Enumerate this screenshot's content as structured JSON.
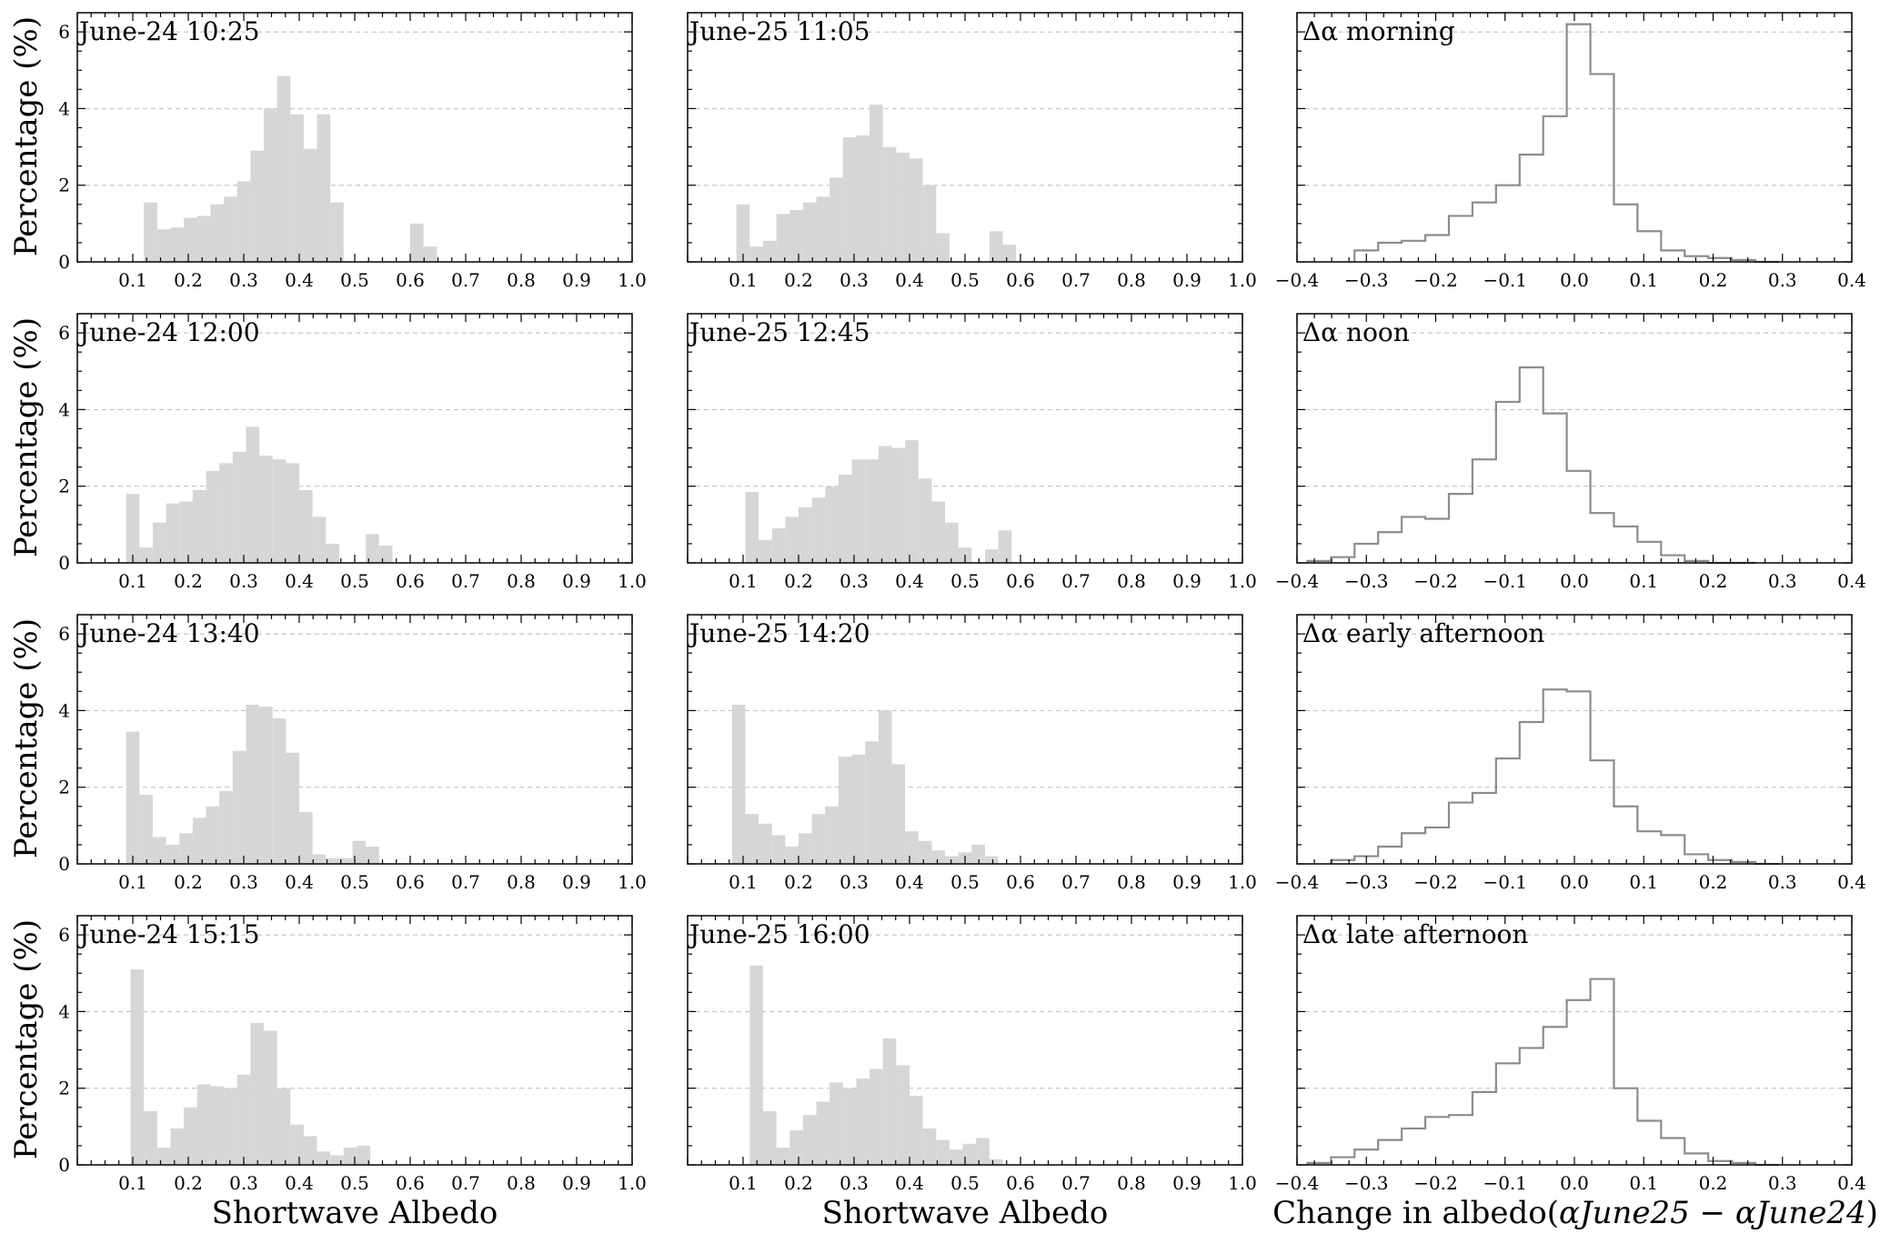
{
  "figure": {
    "ylabel": "Percentage (%)",
    "xlabel_albedo": "Shortwave Albedo",
    "xlabel_change_prefix": "Change in albedo(",
    "xlabel_change_expr": "αJune25 − αJune24",
    "xlabel_change_suffix": ")"
  },
  "chart_data": [
    {
      "type": "bar",
      "label": "June-24 10:25",
      "xlim": [
        0,
        1.0
      ],
      "ylim": [
        0,
        6.5
      ],
      "bin_width": 0.024,
      "x": [
        0.12,
        0.144,
        0.168,
        0.192,
        0.216,
        0.24,
        0.264,
        0.288,
        0.312,
        0.336,
        0.36,
        0.384,
        0.408,
        0.432,
        0.456,
        0.48,
        0.504,
        0.528,
        0.552,
        0.576,
        0.6,
        0.624,
        0.648,
        0.672
      ],
      "values": [
        1.55,
        0.85,
        0.9,
        1.15,
        1.2,
        1.5,
        1.7,
        2.1,
        2.9,
        4.0,
        4.85,
        3.85,
        2.95,
        3.85,
        1.55,
        0,
        0,
        0,
        0,
        0,
        1.0,
        0.4,
        0,
        0
      ]
    },
    {
      "type": "bar",
      "label": "June-25 11:05",
      "xlim": [
        0,
        1.0
      ],
      "ylim": [
        0,
        6.5
      ],
      "bin_width": 0.024,
      "x": [
        0.088,
        0.112,
        0.136,
        0.16,
        0.184,
        0.208,
        0.232,
        0.256,
        0.28,
        0.304,
        0.328,
        0.352,
        0.376,
        0.4,
        0.424,
        0.448,
        0.472,
        0.496,
        0.52,
        0.544,
        0.568,
        0.592,
        0.616,
        0.64,
        0.664
      ],
      "values": [
        1.5,
        0.4,
        0.55,
        1.25,
        1.35,
        1.55,
        1.7,
        2.2,
        3.25,
        3.3,
        4.1,
        3.0,
        2.85,
        2.7,
        2.0,
        0.75,
        0,
        0,
        0,
        0.8,
        0.45,
        0,
        0,
        0,
        0
      ]
    },
    {
      "type": "bar",
      "label": "Δα morning",
      "xlim": [
        -0.4,
        0.4
      ],
      "ylim": [
        0,
        6.5
      ],
      "style": "step",
      "bin_width": 0.034,
      "x": [
        -0.317,
        -0.283,
        -0.249,
        -0.215,
        -0.181,
        -0.147,
        -0.113,
        -0.079,
        -0.045,
        -0.011,
        0.023,
        0.057,
        0.091,
        0.125,
        0.159,
        0.193,
        0.227,
        0.261
      ],
      "values": [
        0.3,
        0.5,
        0.55,
        0.7,
        1.2,
        1.55,
        2.0,
        2.8,
        3.8,
        6.2,
        4.9,
        1.5,
        0.8,
        0.3,
        0.15,
        0.1,
        0.05,
        0.0
      ]
    },
    {
      "type": "bar",
      "label": "June-24 12:00",
      "xlim": [
        0,
        1.0
      ],
      "ylim": [
        0,
        6.5
      ],
      "bin_width": 0.024,
      "x": [
        0.088,
        0.112,
        0.136,
        0.16,
        0.184,
        0.208,
        0.232,
        0.256,
        0.28,
        0.304,
        0.328,
        0.352,
        0.376,
        0.4,
        0.424,
        0.448,
        0.472,
        0.496,
        0.52,
        0.544,
        0.568,
        0.592,
        0.616,
        0.64,
        0.664
      ],
      "values": [
        1.8,
        0.4,
        1.05,
        1.55,
        1.6,
        1.9,
        2.4,
        2.6,
        2.9,
        3.55,
        2.8,
        2.7,
        2.6,
        1.9,
        1.2,
        0.5,
        0,
        0,
        0.75,
        0.45,
        0,
        0,
        0,
        0,
        0
      ]
    },
    {
      "type": "bar",
      "label": "June-25 12:45",
      "xlim": [
        0,
        1.0
      ],
      "ylim": [
        0,
        6.5
      ],
      "bin_width": 0.024,
      "x": [
        0.104,
        0.128,
        0.152,
        0.176,
        0.2,
        0.224,
        0.248,
        0.272,
        0.296,
        0.32,
        0.344,
        0.368,
        0.392,
        0.416,
        0.44,
        0.464,
        0.488,
        0.512,
        0.536,
        0.56,
        0.584,
        0.608,
        0.632,
        0.656,
        0.68
      ],
      "values": [
        1.85,
        0.6,
        0.9,
        1.2,
        1.45,
        1.7,
        2.0,
        2.3,
        2.7,
        2.7,
        3.05,
        3.0,
        3.2,
        2.2,
        1.6,
        1.05,
        0.4,
        0,
        0.35,
        0.85,
        0,
        0,
        0,
        0,
        0
      ]
    },
    {
      "type": "bar",
      "label": "Δα noon",
      "xlim": [
        -0.4,
        0.4
      ],
      "ylim": [
        0,
        6.5
      ],
      "style": "step",
      "bin_width": 0.034,
      "x": [
        -0.385,
        -0.351,
        -0.317,
        -0.283,
        -0.249,
        -0.215,
        -0.181,
        -0.147,
        -0.113,
        -0.079,
        -0.045,
        -0.011,
        0.023,
        0.057,
        0.091,
        0.125,
        0.159,
        0.193,
        0.227
      ],
      "values": [
        0.05,
        0.15,
        0.5,
        0.8,
        1.2,
        1.15,
        1.8,
        2.7,
        4.2,
        5.1,
        3.9,
        2.4,
        1.3,
        0.95,
        0.55,
        0.2,
        0.05,
        0,
        0
      ]
    },
    {
      "type": "bar",
      "label": "June-24 13:40",
      "xlim": [
        0,
        1.0
      ],
      "ylim": [
        0,
        6.5
      ],
      "bin_width": 0.024,
      "x": [
        0.088,
        0.112,
        0.136,
        0.16,
        0.184,
        0.208,
        0.232,
        0.256,
        0.28,
        0.304,
        0.328,
        0.352,
        0.376,
        0.4,
        0.424,
        0.448,
        0.472,
        0.496,
        0.52,
        0.544,
        0.568,
        0.592,
        0.616,
        0.64,
        0.664
      ],
      "values": [
        3.45,
        1.8,
        0.7,
        0.5,
        0.8,
        1.2,
        1.5,
        1.9,
        2.95,
        4.15,
        4.1,
        3.8,
        2.9,
        1.35,
        0.25,
        0.15,
        0.15,
        0.6,
        0.45,
        0,
        0,
        0,
        0,
        0,
        0
      ]
    },
    {
      "type": "bar",
      "label": "June-25 14:20",
      "xlim": [
        0,
        1.0
      ],
      "ylim": [
        0,
        6.5
      ],
      "bin_width": 0.024,
      "x": [
        0.08,
        0.104,
        0.128,
        0.152,
        0.176,
        0.2,
        0.224,
        0.248,
        0.272,
        0.296,
        0.32,
        0.344,
        0.368,
        0.392,
        0.416,
        0.44,
        0.464,
        0.488,
        0.512,
        0.536,
        0.56,
        0.584,
        0.608,
        0.632,
        0.656
      ],
      "values": [
        4.15,
        1.3,
        1.05,
        0.75,
        0.45,
        0.8,
        1.3,
        1.5,
        2.8,
        2.85,
        3.2,
        4.0,
        2.6,
        0.85,
        0.6,
        0.35,
        0.2,
        0.3,
        0.5,
        0.2,
        0,
        0,
        0,
        0,
        0
      ]
    },
    {
      "type": "bar",
      "label": "Δα early afternoon",
      "xlim": [
        -0.4,
        0.4
      ],
      "ylim": [
        0,
        6.5
      ],
      "style": "step",
      "bin_width": 0.034,
      "x": [
        -0.351,
        -0.317,
        -0.283,
        -0.249,
        -0.215,
        -0.181,
        -0.147,
        -0.113,
        -0.079,
        -0.045,
        -0.011,
        0.023,
        0.057,
        0.091,
        0.125,
        0.159,
        0.193,
        0.227,
        0.261
      ],
      "values": [
        0.1,
        0.2,
        0.45,
        0.8,
        0.95,
        1.6,
        1.85,
        2.75,
        3.7,
        4.55,
        4.5,
        2.7,
        1.5,
        0.85,
        0.75,
        0.25,
        0.1,
        0.05,
        0
      ]
    },
    {
      "type": "bar",
      "label": "June-24 15:15",
      "xlim": [
        0,
        1.0
      ],
      "ylim": [
        0,
        6.5
      ],
      "bin_width": 0.024,
      "x": [
        0.096,
        0.12,
        0.144,
        0.168,
        0.192,
        0.216,
        0.24,
        0.264,
        0.288,
        0.312,
        0.336,
        0.36,
        0.384,
        0.408,
        0.432,
        0.456,
        0.48,
        0.504,
        0.528,
        0.552,
        0.576,
        0.6,
        0.624,
        0.648,
        0.672
      ],
      "values": [
        5.1,
        1.4,
        0.45,
        0.95,
        1.5,
        2.1,
        2.05,
        2.0,
        2.35,
        3.7,
        3.5,
        2.0,
        1.05,
        0.75,
        0.35,
        0.25,
        0.45,
        0.5,
        0,
        0,
        0,
        0,
        0,
        0,
        0
      ]
    },
    {
      "type": "bar",
      "label": "June-25 16:00",
      "xlim": [
        0,
        1.0
      ],
      "ylim": [
        0,
        6.5
      ],
      "bin_width": 0.024,
      "x": [
        0.112,
        0.136,
        0.16,
        0.184,
        0.208,
        0.232,
        0.256,
        0.28,
        0.304,
        0.328,
        0.352,
        0.376,
        0.4,
        0.424,
        0.448,
        0.472,
        0.496,
        0.52,
        0.544,
        0.568,
        0.592,
        0.616,
        0.64,
        0.664,
        0.688
      ],
      "values": [
        5.2,
        1.4,
        0.45,
        0.9,
        1.3,
        1.65,
        2.15,
        2.0,
        2.25,
        2.5,
        3.3,
        2.6,
        1.8,
        0.95,
        0.65,
        0.4,
        0.55,
        0.7,
        0.15,
        0,
        0,
        0,
        0,
        0,
        0
      ]
    },
    {
      "type": "bar",
      "label": "Δα late afternoon",
      "xlim": [
        -0.4,
        0.4
      ],
      "ylim": [
        0,
        6.5
      ],
      "style": "step",
      "bin_width": 0.034,
      "x": [
        -0.385,
        -0.351,
        -0.317,
        -0.283,
        -0.249,
        -0.215,
        -0.181,
        -0.147,
        -0.113,
        -0.079,
        -0.045,
        -0.011,
        0.023,
        0.057,
        0.091,
        0.125,
        0.159,
        0.193,
        0.227,
        0.261
      ],
      "values": [
        0.05,
        0.2,
        0.4,
        0.65,
        0.95,
        1.25,
        1.3,
        1.9,
        2.65,
        3.05,
        3.6,
        4.3,
        4.85,
        2.0,
        1.15,
        0.7,
        0.3,
        0.1,
        0.05,
        0
      ]
    }
  ]
}
